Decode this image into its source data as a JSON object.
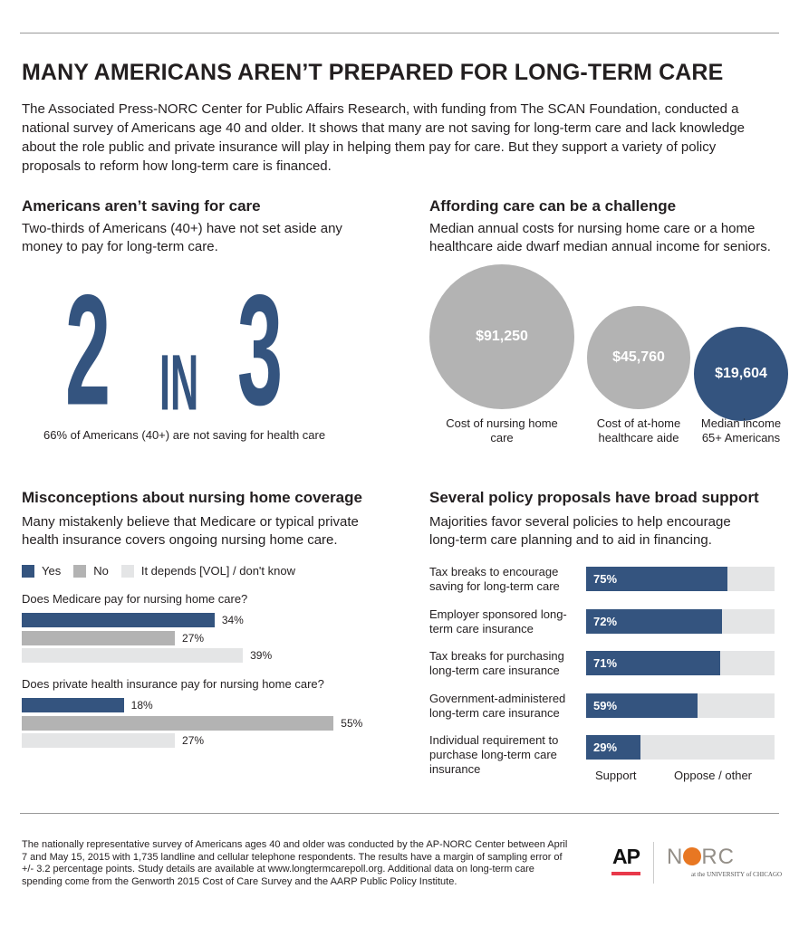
{
  "title": "MANY AMERICANS AREN’T PREPARED FOR LONG-TERM CARE",
  "intro": "The Associated Press-NORC Center for Public Affairs Research, with funding from The SCAN Foundation, conducted a national survey of Americans age 40 and older. It shows that many are not saving for long-term care and lack knowledge about the role public and private insurance will play in helping them pay for care. But they support a variety of policy proposals to reform how long-term care is financed.",
  "colors": {
    "blue": "#34547f",
    "gray": "#b3b3b3",
    "light": "#e4e5e6"
  },
  "saving": {
    "heading": "Americans aren’t saving for care",
    "subtitle": "Two-thirds of Americans (40+) have not set aside any money to pay for long-term care.",
    "big_num1": "2",
    "big_in": "IN",
    "big_num2": "3",
    "caption": "66% of Americans (40+) are not saving for health care"
  },
  "chart_data": [
    {
      "type": "bubble",
      "title": "Affording care can be a challenge",
      "subtitle": "Median annual costs for nursing home care or a home healthcare aide dwarf median annual income for seniors.",
      "items": [
        {
          "label": "Cost of nursing home care",
          "value": 91250,
          "display": "$91,250",
          "color": "#b3b3b3"
        },
        {
          "label": "Cost of at-home healthcare aide",
          "value": 45760,
          "display": "$45,760",
          "color": "#b3b3b3"
        },
        {
          "label": "Median income 65+ Americans",
          "value": 19604,
          "display": "$19,604",
          "color": "#34547f"
        }
      ]
    },
    {
      "type": "bar",
      "title": "Misconceptions about nursing home coverage",
      "subtitle": "Many mistakenly believe that Medicare or typical private health insurance covers ongoing nursing home care.",
      "legend": [
        "Yes",
        "No",
        "It depends [VOL] / don't know"
      ],
      "groups": [
        {
          "question": "Does Medicare pay for nursing home care?",
          "values": [
            34,
            27,
            39
          ]
        },
        {
          "question": "Does private health insurance pay for nursing home care?",
          "values": [
            18,
            55,
            27
          ]
        }
      ],
      "unit": "%"
    },
    {
      "type": "bar",
      "stacked": true,
      "title": "Several policy proposals have broad support",
      "subtitle": "Majorities favor several policies to help encourage long-term care planning and to aid in financing.",
      "legend": [
        "Support",
        "Oppose / other"
      ],
      "categories": [
        "Tax breaks to encourage saving for long-term care",
        "Employer sponsored long-term care insurance",
        "Tax breaks for purchasing long-term care insurance",
        "Government-administered long-term care insurance",
        "Individual requirement to purchase long-term care insurance"
      ],
      "values": [
        75,
        72,
        71,
        59,
        29
      ],
      "unit": "%"
    }
  ],
  "footnote": "The nationally representative survey of Americans ages 40 and older was conducted by the AP-NORC Center between April 7 and May 15, 2015 with 1,735 landline and cellular telephone respondents. The results have a margin of sampling error of +/- 3.2 percentage points. Study details are available at www.longtermcarepoll.org. Additional data on long-term care spending come from the Genworth 2015 Cost of Care Survey and the AARP Public Policy Institute.",
  "logos": {
    "ap": "AP",
    "norc": "NORC",
    "norc_sub": "at the UNIVERSITY of CHICAGO"
  }
}
